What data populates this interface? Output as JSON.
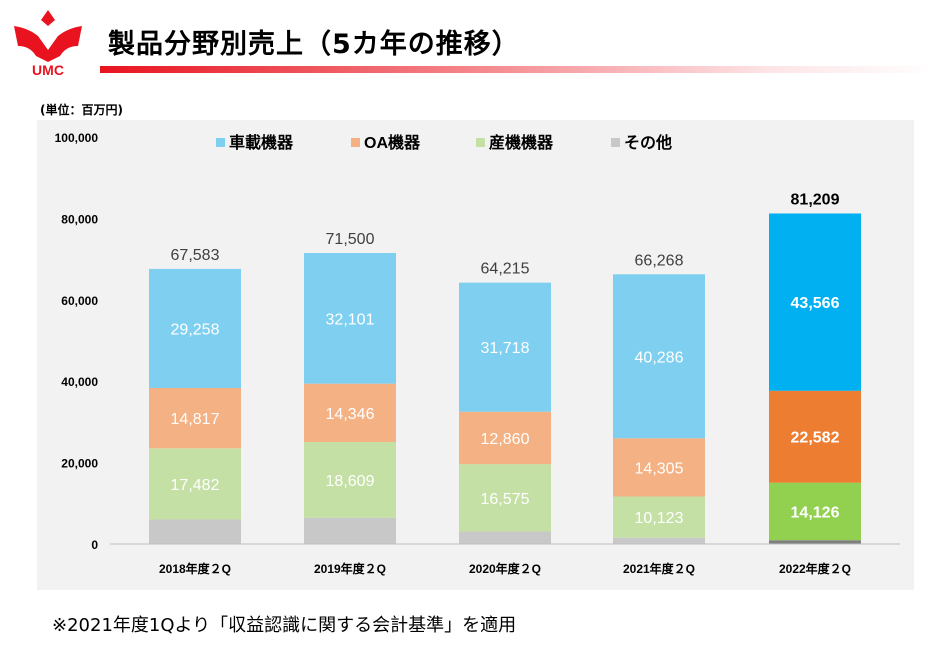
{
  "brand": {
    "logo_text": "UMC",
    "accent": "#e8131f"
  },
  "title": "製品分野別売上（5カ年の推移）",
  "unit_label": "(単位：百万円)",
  "note": "※2021年度1Qより「収益認識に関する会計基準」を適用",
  "chart_data": {
    "type": "bar",
    "stacked": true,
    "categories": [
      "2018年度２Q",
      "2019年度２Q",
      "2020年度２Q",
      "2021年度２Q",
      "2022年度２Q"
    ],
    "ylim": [
      0,
      100000
    ],
    "yticks": [
      0,
      20000,
      40000,
      60000,
      80000,
      100000
    ],
    "ytick_labels": [
      "0",
      "20,000",
      "40,000",
      "60,000",
      "80,000",
      "100,000"
    ],
    "legend_position": "top",
    "grid": false,
    "totals": [
      67583,
      71500,
      64215,
      66268,
      81209
    ],
    "total_labels": [
      "67,583",
      "71,500",
      "64,215",
      "66,268",
      "81,209"
    ],
    "series": [
      {
        "name": "その他",
        "values": [
          6026,
          6444,
          3062,
          1554,
          935
        ],
        "colors": [
          "#c8c8c8",
          "#c8c8c8",
          "#c8c8c8",
          "#c8c8c8",
          "#7f7f7f"
        ],
        "labels": [
          "",
          "",
          "",
          "",
          ""
        ]
      },
      {
        "name": "産機機器",
        "values": [
          17482,
          18609,
          16575,
          10123,
          14126
        ],
        "colors": [
          "#c5e0a5",
          "#c5e0a5",
          "#c5e0a5",
          "#c5e0a5",
          "#92d050"
        ],
        "labels": [
          "17,482",
          "18,609",
          "16,575",
          "10,123",
          "14,126"
        ]
      },
      {
        "name": "OA機器",
        "values": [
          14817,
          14346,
          12860,
          14305,
          22582
        ],
        "colors": [
          "#f4b183",
          "#f4b183",
          "#f4b183",
          "#f4b183",
          "#ed7d31"
        ],
        "labels": [
          "14,817",
          "14,346",
          "12,860",
          "14,305",
          "22,582"
        ]
      },
      {
        "name": "車載機器",
        "values": [
          29258,
          32101,
          31718,
          40286,
          43566
        ],
        "colors": [
          "#7fd0f0",
          "#7fd0f0",
          "#7fd0f0",
          "#7fd0f0",
          "#00b0f0"
        ],
        "labels": [
          "29,258",
          "32,101",
          "31,718",
          "40,286",
          "43,566"
        ]
      }
    ],
    "legend": [
      {
        "name": "車載機器",
        "color": "#7fd0f0"
      },
      {
        "name": "OA機器",
        "color": "#f4b183"
      },
      {
        "name": "産機機器",
        "color": "#c5e0a5"
      },
      {
        "name": "その他",
        "color": "#c8c8c8"
      }
    ],
    "highlight_index": 4
  }
}
